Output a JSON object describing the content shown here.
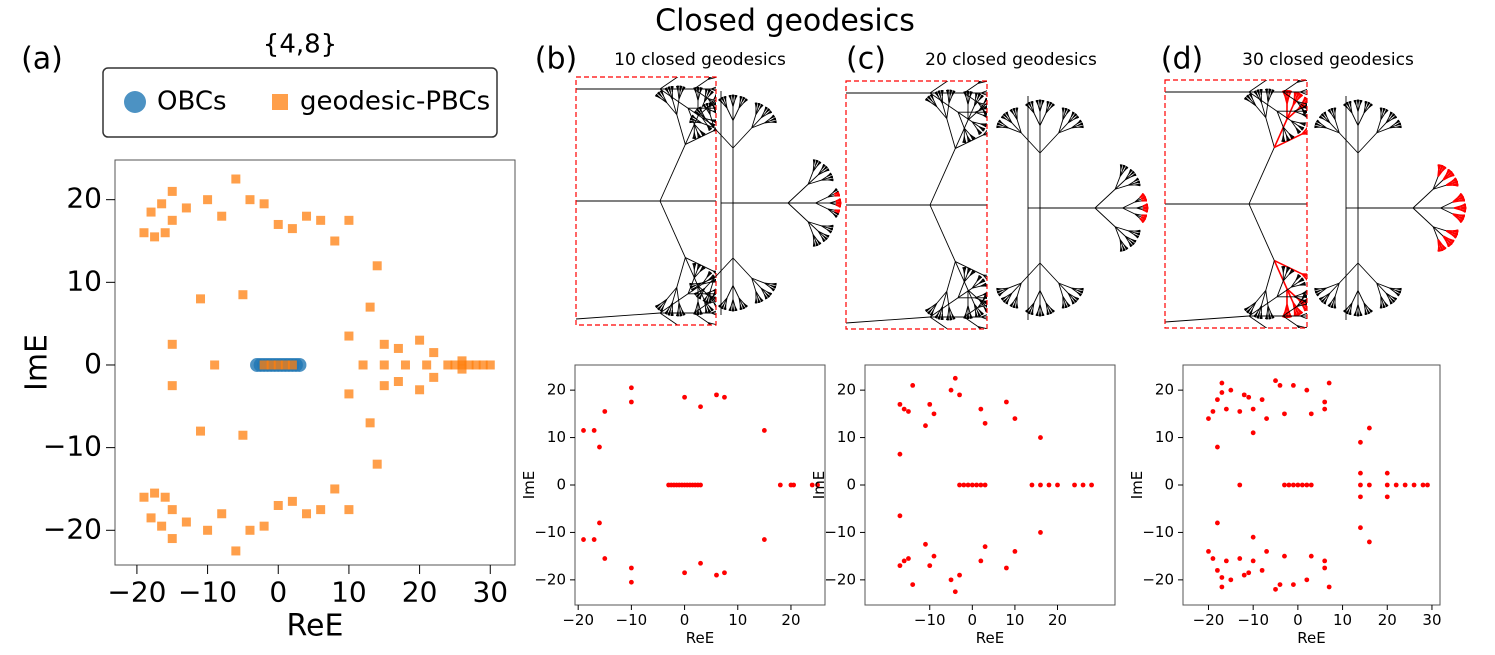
{
  "title": "Closed geodesics",
  "chart_data": [
    {
      "type": "scatter",
      "panel": "(a)",
      "title": "{4,8}",
      "xlabel": "ReE",
      "ylabel": "ImE",
      "xlim": [
        -23.1,
        33.5
      ],
      "ylim": [
        -24.2,
        24.8
      ],
      "xticks": [
        {
          "value": -20,
          "label": "−20"
        },
        {
          "value": -10,
          "label": "−10"
        },
        0,
        10,
        20,
        30
      ],
      "yticks": [
        {
          "value": -20,
          "label": "−20"
        },
        {
          "value": -10,
          "label": "−10"
        },
        0,
        10,
        20
      ],
      "legend": "top",
      "series": [
        {
          "name": "OBCs",
          "color": "#1f77b4",
          "marker": "circle",
          "x": [
            -3,
            -2.5,
            -2,
            -1.5,
            -1,
            -0.5,
            0,
            0.5,
            1,
            1.5,
            2,
            2.5,
            3
          ],
          "values": [
            0,
            0,
            0,
            0,
            0,
            0,
            0,
            0,
            0,
            0,
            0,
            0,
            0
          ]
        },
        {
          "name": "geodesic-PBCs",
          "color": "#ff7f0e",
          "marker": "square",
          "x": [
            -19,
            -17.5,
            -16,
            -15,
            -15,
            -16.5,
            -18,
            -13,
            -10,
            -8,
            -6,
            -4,
            -2,
            0,
            2,
            4,
            6,
            8,
            10,
            -11,
            -5,
            -15,
            10,
            14,
            13,
            15,
            17,
            20,
            22,
            26,
            -9,
            -2,
            -1,
            0,
            1,
            2,
            12,
            15,
            18,
            21,
            24,
            25,
            26,
            27,
            28,
            29,
            30,
            -19,
            -17.5,
            -16,
            -15,
            -15,
            -16.5,
            -18,
            -13,
            -10,
            -8,
            -6,
            -4,
            -2,
            0,
            2,
            4,
            6,
            8,
            10,
            -11,
            -5,
            -15,
            10,
            14,
            13,
            15,
            17,
            20,
            22,
            26
          ],
          "values": [
            16,
            15.5,
            16,
            17.5,
            21,
            19.5,
            18.5,
            19,
            20,
            18,
            22.5,
            20,
            19.5,
            17,
            16.5,
            18,
            17.5,
            15,
            17.5,
            8,
            8.5,
            2.5,
            3.5,
            12,
            7,
            2.5,
            2,
            3,
            1.5,
            0.5,
            0,
            0,
            0,
            0,
            0,
            0,
            0,
            0,
            0,
            0,
            0,
            0,
            0,
            0,
            0,
            0,
            0,
            -16,
            -15.5,
            -16,
            -17.5,
            -21,
            -19.5,
            -18.5,
            -19,
            -20,
            -18,
            -22.5,
            -20,
            -19.5,
            -17,
            -16.5,
            -18,
            -17.5,
            -15,
            -17.5,
            -8,
            -8.5,
            -2.5,
            -3.5,
            -12,
            -7,
            -2.5,
            -2,
            -3,
            -1.5,
            -0.5
          ]
        }
      ]
    },
    {
      "type": "scatter",
      "panel": "(b)",
      "title": "10 closed geodesics",
      "xlabel": "ReE",
      "ylabel": "ImE",
      "xlim": [
        -20.6,
        26.4
      ],
      "ylim": [
        -25.3,
        25.3
      ],
      "xticks": [
        {
          "value": -20,
          "label": "−20"
        },
        {
          "value": -10,
          "label": "−10"
        },
        0,
        10,
        20
      ],
      "yticks": [
        {
          "value": -20,
          "label": "−20"
        },
        {
          "value": -10,
          "label": "−10"
        },
        0,
        10,
        20
      ],
      "series": [
        {
          "color": "#ff0000",
          "marker": "circle",
          "x": [
            -19,
            -17,
            -16,
            -15,
            -10,
            -10,
            0,
            3,
            6,
            7.5,
            15,
            -3,
            -2.5,
            -2,
            -1.5,
            -1,
            -0.5,
            0,
            0.5,
            1,
            1.5,
            2,
            2.5,
            3,
            18,
            20,
            20.5,
            24,
            25,
            -19,
            -17,
            -16,
            -15,
            -10,
            -10,
            0,
            3,
            6,
            7.5,
            15
          ],
          "values": [
            11.5,
            11.5,
            8,
            15.5,
            20.5,
            17.5,
            18.5,
            16.5,
            19,
            18.5,
            11.5,
            0,
            0,
            0,
            0,
            0,
            0,
            0,
            0,
            0,
            0,
            0,
            0,
            0,
            0,
            0,
            0,
            0,
            0,
            -11.5,
            -11.5,
            -8,
            -15.5,
            -20.5,
            -17.5,
            -18.5,
            -16.5,
            -19,
            -18.5,
            -11.5
          ]
        }
      ]
    },
    {
      "type": "scatter",
      "panel": "(c)",
      "title": "20 closed geodesics",
      "xlabel": "ReE",
      "ylabel": "ImE",
      "xlim": [
        -25.2,
        33.5
      ],
      "ylim": [
        -25.3,
        25.3
      ],
      "xticks": [
        {
          "value": -10,
          "label": "−10"
        },
        0,
        10,
        20
      ],
      "yticks": [
        {
          "value": -20,
          "label": "−20"
        },
        {
          "value": -10,
          "label": "−10"
        },
        0,
        10,
        20
      ],
      "series": [
        {
          "color": "#ff0000",
          "marker": "circle",
          "x": [
            -17,
            -16,
            -15,
            -17,
            -14,
            -11,
            -10,
            -9,
            -5,
            -4,
            -3,
            2,
            3,
            8,
            10,
            16,
            -3,
            -2,
            -1,
            0,
            1,
            2,
            3,
            14,
            16,
            18,
            20,
            24,
            26,
            28,
            -17,
            -16,
            -15,
            -17,
            -14,
            -11,
            -10,
            -9,
            -5,
            -4,
            -3,
            2,
            3,
            8,
            10,
            16
          ],
          "values": [
            17,
            16,
            15.5,
            6.5,
            21,
            12.5,
            17,
            15,
            20,
            22.5,
            19,
            16,
            13,
            17.5,
            14,
            10,
            0,
            0,
            0,
            0,
            0,
            0,
            0,
            0,
            0,
            0,
            0,
            0,
            0,
            0,
            -17,
            -16,
            -15.5,
            -6.5,
            -21,
            -12.5,
            -17,
            -15,
            -20,
            -22.5,
            -19,
            -16,
            -13,
            -17.5,
            -14,
            -10
          ]
        }
      ]
    },
    {
      "type": "scatter",
      "panel": "(d)",
      "title": "30 closed geodesics",
      "xlabel": "ReE",
      "ylabel": "ImE",
      "xlim": [
        -25.7,
        31.8
      ],
      "ylim": [
        -25.3,
        25.3
      ],
      "xticks": [
        {
          "value": -20,
          "label": "−20"
        },
        {
          "value": -10,
          "label": "−10"
        },
        0,
        10,
        20,
        30
      ],
      "yticks": [
        {
          "value": -20,
          "label": "−20"
        },
        {
          "value": -10,
          "label": "−10"
        },
        0,
        10,
        20
      ],
      "series": [
        {
          "color": "#ff0000",
          "marker": "circle",
          "x": [
            -20,
            -19,
            -18,
            -17,
            -17,
            -16,
            -18,
            -15,
            -13,
            -12,
            -11,
            -10,
            -10,
            -8,
            -7,
            -5,
            -4,
            -3,
            -1,
            2,
            3,
            6,
            6,
            7,
            14,
            16,
            14,
            20,
            -13,
            -3,
            -2,
            -1,
            0,
            1,
            2,
            3,
            14,
            16,
            20,
            22,
            24,
            26,
            28,
            29,
            -20,
            -19,
            -18,
            -17,
            -17,
            -16,
            -18,
            -15,
            -13,
            -12,
            -11,
            -10,
            -10,
            -8,
            -7,
            -5,
            -4,
            -3,
            -1,
            2,
            3,
            6,
            6,
            7,
            14,
            16,
            14,
            20
          ],
          "values": [
            14,
            15.5,
            18,
            19.5,
            21.5,
            16,
            8,
            20,
            15.5,
            19,
            18.5,
            11,
            16,
            18,
            14,
            22,
            21,
            15,
            21,
            20,
            15,
            17.5,
            16,
            21.5,
            9,
            12,
            2.5,
            2.5,
            0,
            0,
            0,
            0,
            0,
            0,
            0,
            0,
            0,
            0,
            0,
            0,
            0,
            0,
            0,
            0,
            -14,
            -15.5,
            -18,
            -19.5,
            -21.5,
            -16,
            -8,
            -20,
            -15.5,
            -19,
            -18.5,
            -11,
            -16,
            -18,
            -14,
            -22,
            -21,
            -15,
            -21,
            -20,
            -15,
            -17.5,
            -16,
            -21.5,
            -9,
            -12,
            -2.5,
            -2.5
          ]
        }
      ]
    }
  ]
}
